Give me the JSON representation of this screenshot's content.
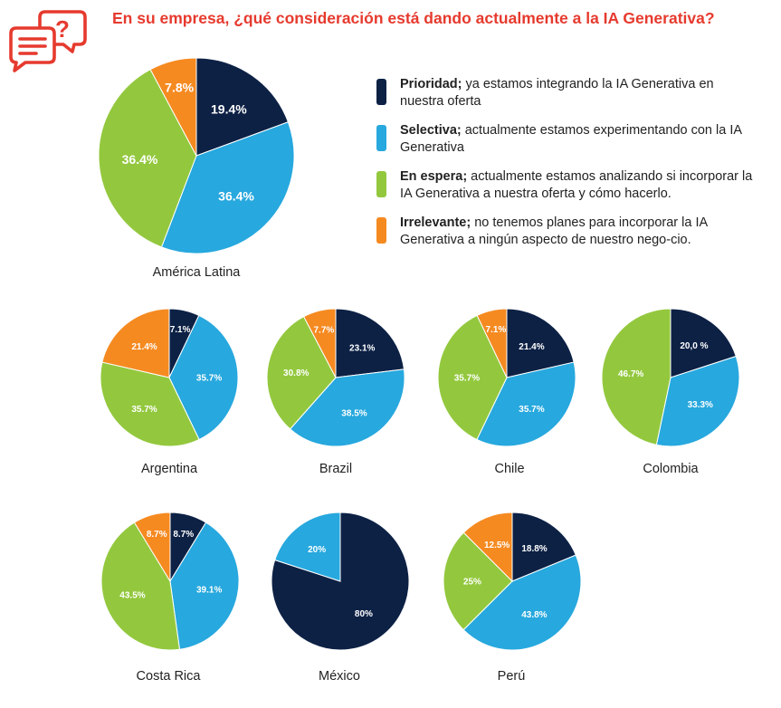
{
  "header": {
    "title": "En su empresa, ¿qué consideración está dando actualmente a la IA Generativa?",
    "icon": "speech-bubbles-question-icon",
    "accent_color": "#e63a2e"
  },
  "legend": [
    {
      "bold": "Prioridad;",
      "text": " ya estamos integrando la IA Generativa en nuestra oferta",
      "color": "#0d2145"
    },
    {
      "bold": "Selectiva;",
      "text": " actualmente estamos experimentando con la IA Generativa",
      "color": "#27a8de"
    },
    {
      "bold": "En espera;",
      "text": " actualmente estamos analizando si incorporar la IA Generativa a nuestra oferta y cómo hacerlo.",
      "color": "#93c83e"
    },
    {
      "bold": "Irrelevante;",
      "text": " no tenemos planes para incorporar la IA Generativa a ningún aspecto de nuestro nego-cio.",
      "color": "#f58a21"
    }
  ],
  "chart_data": [
    {
      "type": "pie",
      "title": "América Latina",
      "labels": [
        "Prioridad",
        "Selectiva",
        "En espera",
        "Irrelevante"
      ],
      "values": [
        19.4,
        36.4,
        36.4,
        7.8
      ],
      "value_labels": [
        "19.4%",
        "36.4%",
        "36.4%",
        "7.8%"
      ]
    },
    {
      "type": "pie",
      "title": "Argentina",
      "labels": [
        "Prioridad",
        "Selectiva",
        "En espera",
        "Irrelevante"
      ],
      "values": [
        7.1,
        35.7,
        35.7,
        21.4
      ],
      "value_labels": [
        "7.1%",
        "35.7%",
        "35.7%",
        "21.4%"
      ]
    },
    {
      "type": "pie",
      "title": "Brazil",
      "labels": [
        "Prioridad",
        "Selectiva",
        "En espera",
        "Irrelevante"
      ],
      "values": [
        23.1,
        38.5,
        30.8,
        7.7
      ],
      "value_labels": [
        "23.1%",
        "38.5%",
        "30.8%",
        "7.7%"
      ]
    },
    {
      "type": "pie",
      "title": "Chile",
      "labels": [
        "Prioridad",
        "Selectiva",
        "En espera",
        "Irrelevante"
      ],
      "values": [
        21.4,
        35.7,
        35.7,
        7.1
      ],
      "value_labels": [
        "21.4%",
        "35.7%",
        "35.7%",
        "7.1%"
      ]
    },
    {
      "type": "pie",
      "title": "Colombia",
      "labels": [
        "Prioridad",
        "Selectiva",
        "En espera"
      ],
      "values": [
        20.0,
        33.3,
        46.7
      ],
      "value_labels": [
        "20,0 %",
        "33.3%",
        "46.7%"
      ]
    },
    {
      "type": "pie",
      "title": "Costa Rica",
      "labels": [
        "Prioridad",
        "Selectiva",
        "En espera",
        "Irrelevante"
      ],
      "values": [
        8.7,
        39.1,
        43.5,
        8.7
      ],
      "value_labels": [
        "8.7%",
        "39.1%",
        "43.5%",
        "8.7%"
      ]
    },
    {
      "type": "pie",
      "title": "México",
      "labels": [
        "Prioridad",
        "Selectiva"
      ],
      "values": [
        80,
        20
      ],
      "value_labels": [
        "80%",
        "20%"
      ]
    },
    {
      "type": "pie",
      "title": "Perú",
      "labels": [
        "Prioridad",
        "Selectiva",
        "En espera",
        "Irrelevante"
      ],
      "values": [
        18.8,
        43.8,
        25,
        12.5
      ],
      "value_labels": [
        "18.8%",
        "43.8%",
        "25%",
        "12.5%"
      ]
    }
  ]
}
